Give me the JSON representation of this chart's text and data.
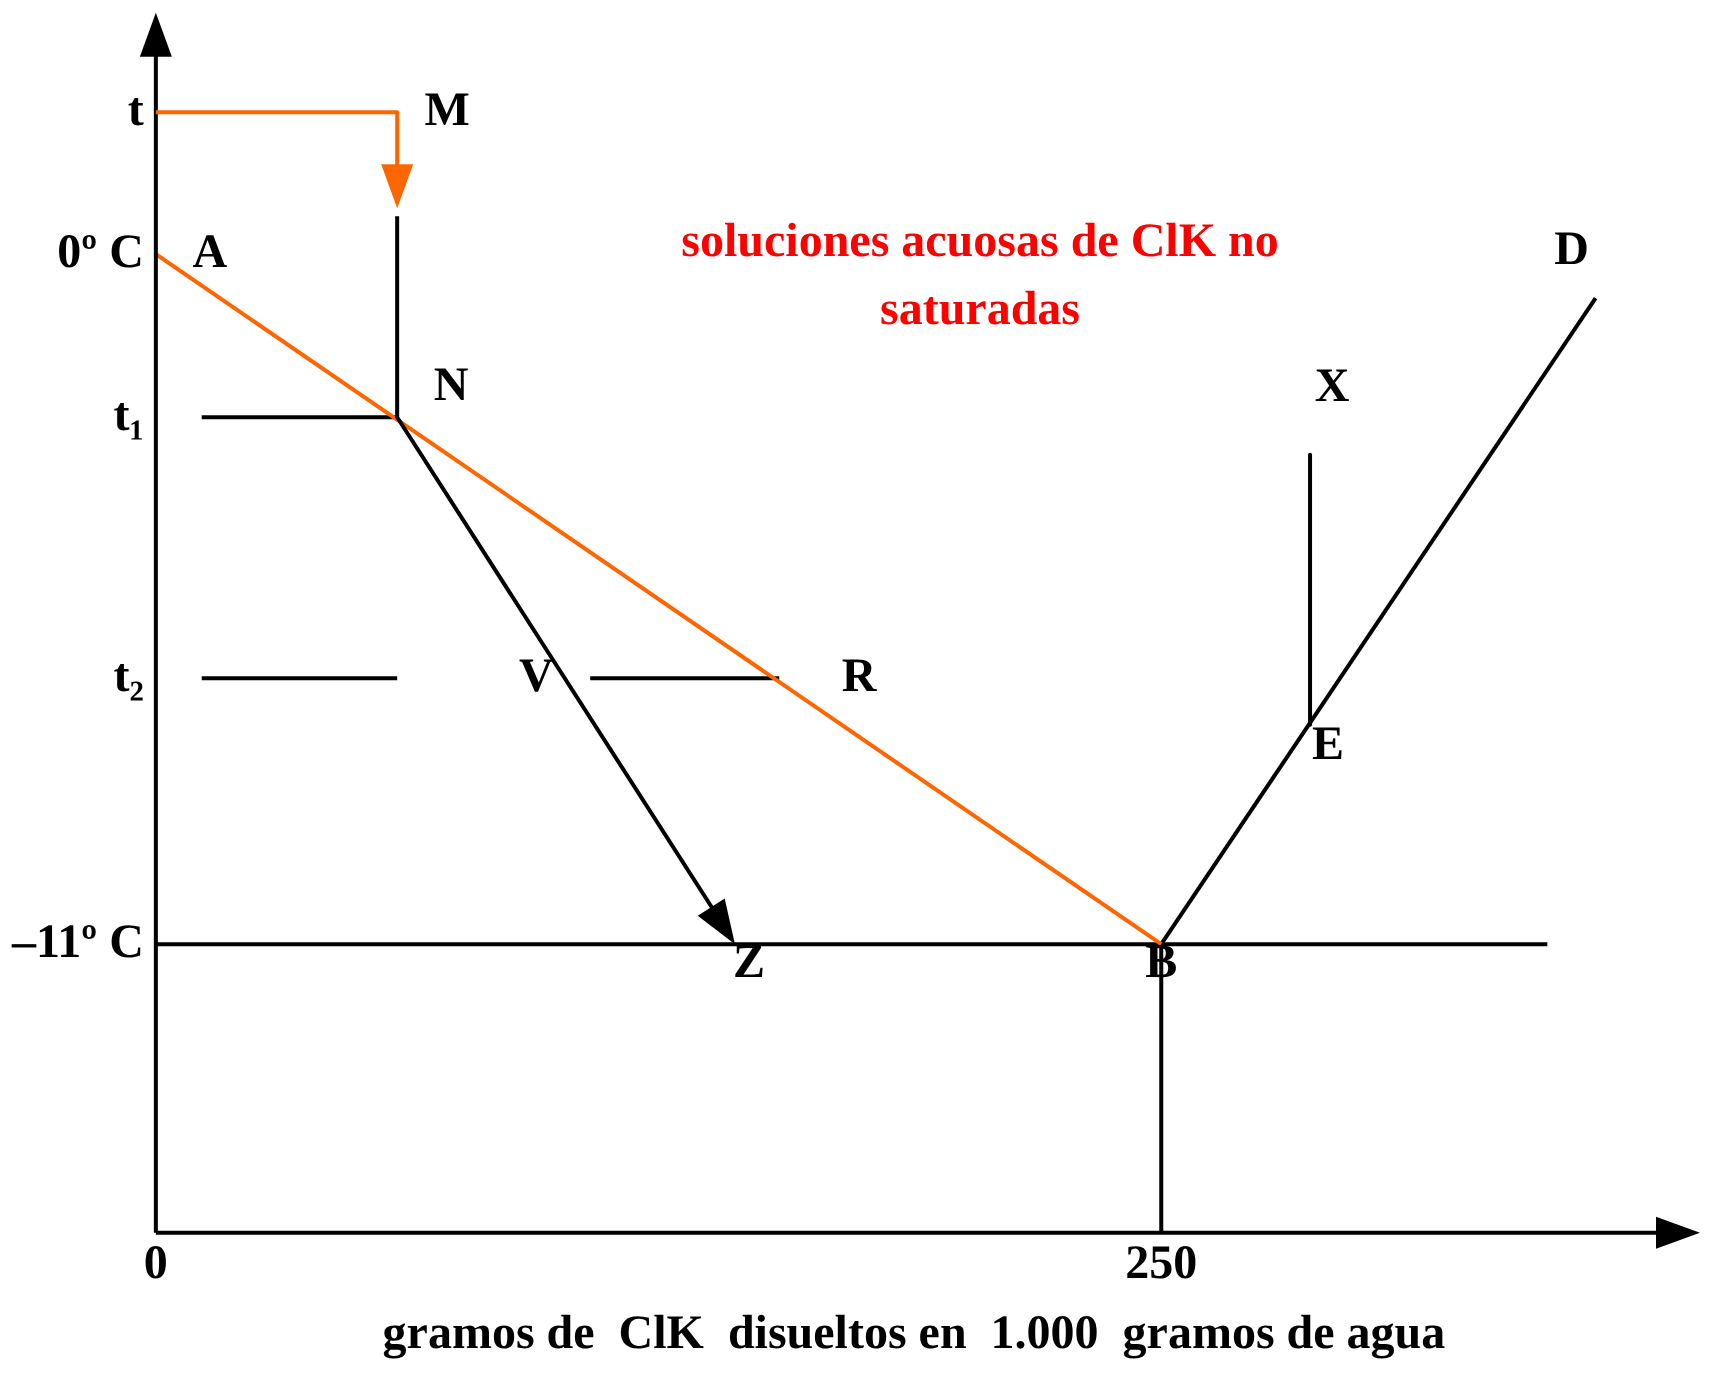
{
  "chart_data": {
    "type": "line",
    "xlabel": "gramos de  ClK  disueltos en  1.000  gramos de agua",
    "xlim": [
      0,
      377
    ],
    "ylim": [
      -15.6,
      3.4
    ],
    "xticks": [
      0,
      250
    ],
    "yticks": [
      {
        "value": 2.26,
        "label": "t"
      },
      {
        "value": 0,
        "label": "0º C"
      },
      {
        "value": -2.6,
        "label": "t₁"
      },
      {
        "value": -6.76,
        "label": "t₂"
      },
      {
        "value": -11,
        "label": "–11º C"
      }
    ],
    "grid": false,
    "legend": false,
    "marker": "none",
    "line_style": "solid",
    "series": [
      {
        "color": "#ff6600",
        "x": [
          0,
          250
        ],
        "values": [
          0,
          -11
        ]
      },
      {
        "color": "#000000",
        "x": [
          250,
          358
        ],
        "values": [
          -11,
          -0.7
        ]
      },
      {
        "color": "#000000",
        "x": [
          287,
          287
        ],
        "values": [
          -3.2,
          -7.5
        ]
      },
      {
        "color": "#000000",
        "x": [
          250,
          250
        ],
        "values": [
          -11,
          -15.6
        ]
      },
      {
        "color": "#000000",
        "x": [
          0,
          346
        ],
        "values": [
          -11,
          -11
        ]
      },
      {
        "color": "#000000",
        "x": [
          11.4,
          60
        ],
        "values": [
          -2.6,
          -2.6
        ]
      },
      {
        "color": "#000000",
        "x": [
          11.4,
          60
        ],
        "values": [
          -6.76,
          -6.76
        ]
      },
      {
        "color": "#000000",
        "x": [
          108,
          155
        ],
        "values": [
          -6.76,
          -6.76
        ]
      }
    ],
    "annotations": [
      "soluciones acuosas de  ClK no saturadas",
      "M",
      {
        "text": "A",
        "x": 0,
        "y": 0
      },
      {
        "text": "N",
        "x": 60,
        "y": -2.6
      },
      {
        "text": "X",
        "x": 287,
        "y": -3.2
      },
      "V",
      {
        "text": "R",
        "x": 155,
        "y": -6.76
      },
      {
        "text": "E",
        "x": 287,
        "y": -7.5
      },
      {
        "text": "Z",
        "x": 144,
        "y": -11
      },
      {
        "text": "B",
        "x": 250,
        "y": -11
      },
      {
        "text": "D",
        "x": 358,
        "y": -0.7
      }
    ]
  }
}
